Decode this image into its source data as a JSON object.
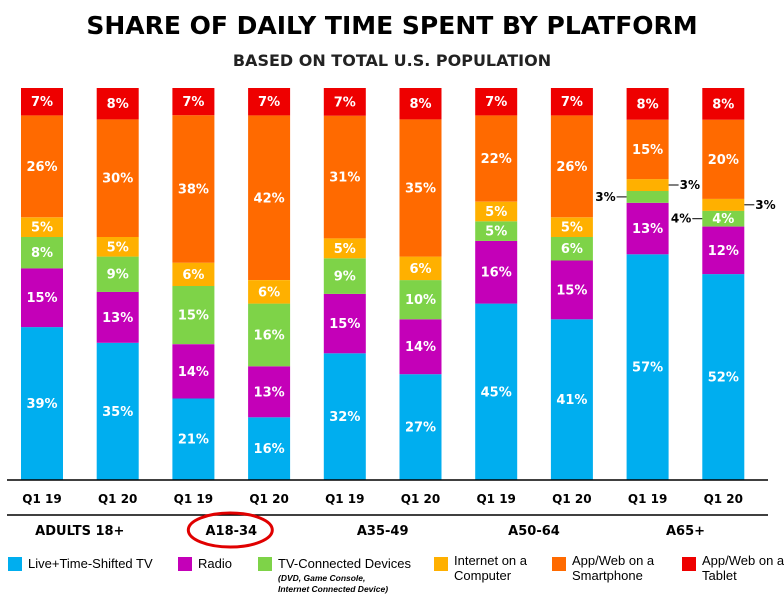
{
  "chart_data": {
    "type": "bar",
    "stacked": true,
    "title": "SHARE OF DAILY TIME SPENT BY PLATFORM",
    "subtitle": "BASED ON TOTAL U.S. POPULATION",
    "groups": [
      {
        "name": "ADULTS 18+",
        "highlighted": false,
        "categories": [
          "Q1 19",
          "Q1 20"
        ]
      },
      {
        "name": "A18-34",
        "highlighted": true,
        "categories": [
          "Q1 19",
          "Q1 20"
        ]
      },
      {
        "name": "A35-49",
        "highlighted": false,
        "categories": [
          "Q1 19",
          "Q1 20"
        ]
      },
      {
        "name": "A50-64",
        "highlighted": false,
        "categories": [
          "Q1 19",
          "Q1 20"
        ]
      },
      {
        "name": "A65+",
        "highlighted": false,
        "categories": [
          "Q1 19",
          "Q1 20"
        ]
      }
    ],
    "categories": [
      "Q1 19",
      "Q1 20",
      "Q1 19",
      "Q1 20",
      "Q1 19",
      "Q1 20",
      "Q1 19",
      "Q1 20",
      "Q1 19",
      "Q1 20"
    ],
    "series": [
      {
        "name": "Live+Time-Shifted TV",
        "color": "#00aeef",
        "values": [
          39,
          35,
          21,
          16,
          32,
          27,
          45,
          41,
          57,
          52
        ]
      },
      {
        "name": "Radio",
        "color": "#c400b8",
        "values": [
          15,
          13,
          14,
          13,
          15,
          14,
          16,
          15,
          13,
          12
        ]
      },
      {
        "name": "TV-Connected Devices",
        "color": "#7ed348",
        "values": [
          8,
          9,
          15,
          16,
          9,
          10,
          5,
          6,
          3,
          4
        ]
      },
      {
        "name": "Internet on a Computer",
        "color": "#ffb000",
        "values": [
          5,
          5,
          6,
          6,
          5,
          6,
          5,
          5,
          3,
          3
        ]
      },
      {
        "name": "App/Web on a Smartphone",
        "color": "#ff6a00",
        "values": [
          26,
          30,
          38,
          42,
          31,
          35,
          22,
          26,
          15,
          20
        ]
      },
      {
        "name": "App/Web on a Tablet",
        "color": "#ee0000",
        "values": [
          7,
          8,
          7,
          7,
          7,
          8,
          7,
          7,
          8,
          8
        ]
      }
    ],
    "ylim": [
      0,
      100
    ],
    "grid": false,
    "legend": "bottom",
    "legend_note": "(DVD, Game Console, Internet Connected Device)"
  },
  "bar_labels": [
    [
      "39%",
      "15%",
      "8%",
      "5%",
      "26%",
      "7%"
    ],
    [
      "35%",
      "13%",
      "9%",
      "5%",
      "30%",
      "8%"
    ],
    [
      "21%",
      "14%",
      "15%",
      "6%",
      "38%",
      "7%"
    ],
    [
      "16%",
      "13%",
      "16%",
      "6%",
      "42%",
      "7%"
    ],
    [
      "32%",
      "15%",
      "9%",
      "5%",
      "31%",
      "7%"
    ],
    [
      "27%",
      "14%",
      "10%",
      "6%",
      "35%",
      "8%"
    ],
    [
      "45%",
      "16%",
      "5%",
      "5%",
      "22%",
      "7%"
    ],
    [
      "41%",
      "15%",
      "6%",
      "5%",
      "26%",
      "7%"
    ],
    [
      "57%",
      "13%",
      "3%",
      "3%",
      "15%",
      "8%"
    ],
    [
      "52%",
      "12%",
      "4%",
      "3%",
      "20%",
      "8%"
    ]
  ],
  "outside_labels": [
    {
      "bar": 8,
      "series": 2,
      "side": "left",
      "text": "3%"
    },
    {
      "bar": 8,
      "series": 3,
      "side": "right",
      "text": "3%"
    },
    {
      "bar": 9,
      "series": 2,
      "side": "left",
      "text": "4%"
    },
    {
      "bar": 9,
      "series": 3,
      "side": "right",
      "text": "3%"
    }
  ]
}
